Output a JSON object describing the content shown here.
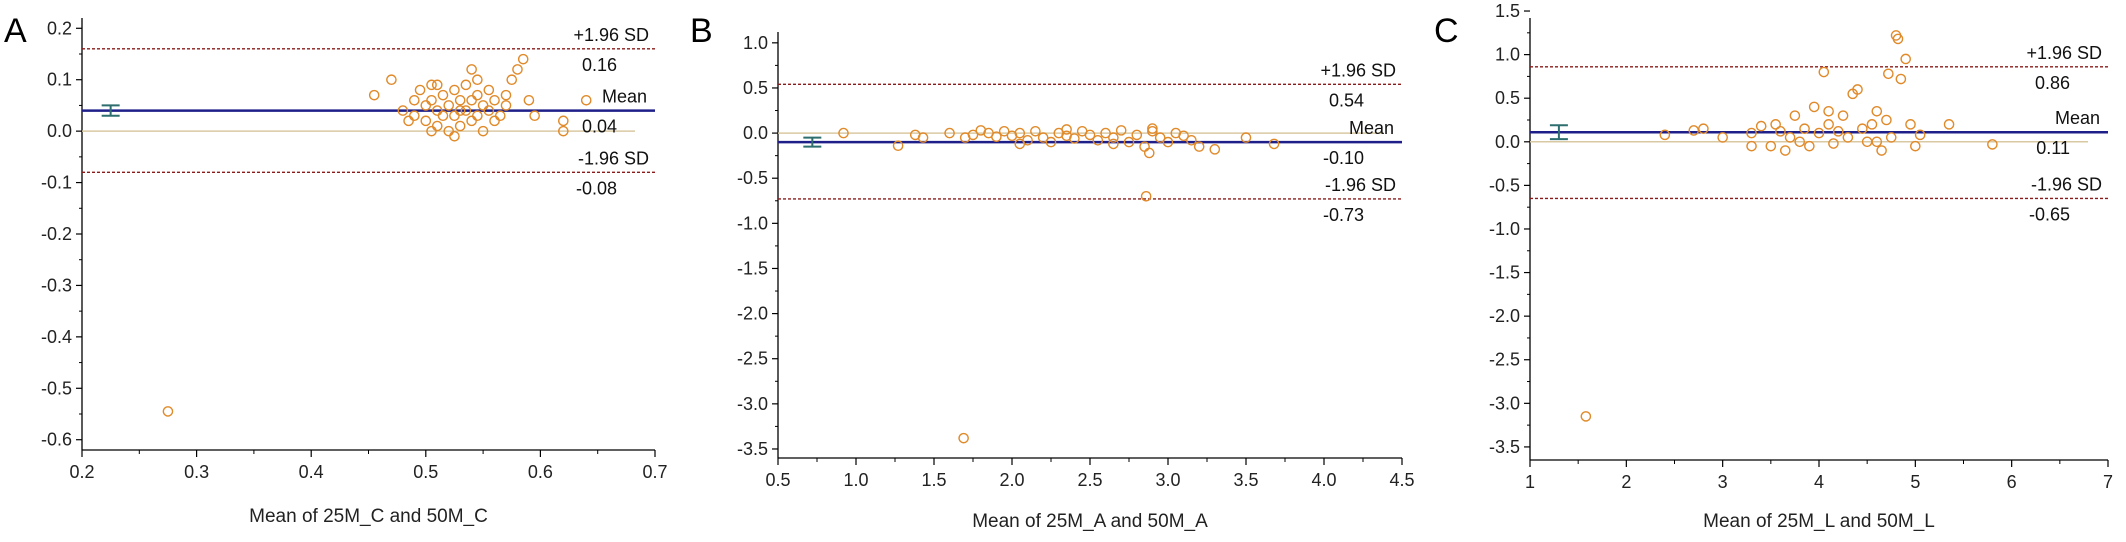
{
  "colors": {
    "axis": "#000000",
    "mean_line": "#1f1f8a",
    "limit_line": "#8b1a1a",
    "zero_line": "#d9c9a3",
    "point": "#e08a2a",
    "ci_bar": "#2e6e6e"
  },
  "chart_data": [
    {
      "type": "scatter",
      "panel_label": "A",
      "xlabel": "Mean of 25M_C and 50M_C",
      "ylabel": "",
      "xlim": [
        0.2,
        0.7
      ],
      "ylim": [
        -0.62,
        0.22
      ],
      "xticks": [
        "0.2",
        "0.3",
        "0.4",
        "0.5",
        "0.6",
        "0.7"
      ],
      "yticks": [
        "0.2",
        "0.1",
        "0.0",
        "-0.1",
        "-0.2",
        "-0.3",
        "-0.4",
        "-0.5",
        "-0.6"
      ],
      "mean": 0.04,
      "upper_loa": 0.16,
      "lower_loa": -0.08,
      "labels": {
        "upper": "+1.96 SD",
        "upper_value": "0.16",
        "mean": "Mean",
        "mean_value": "0.04",
        "lower": "-1.96 SD",
        "lower_value": "-0.08"
      },
      "mean_ci": {
        "x": 0.225,
        "low": 0.03,
        "high": 0.05
      },
      "points": [
        [
          0.455,
          0.07
        ],
        [
          0.47,
          0.1
        ],
        [
          0.48,
          0.04
        ],
        [
          0.485,
          0.02
        ],
        [
          0.49,
          0.06
        ],
        [
          0.49,
          0.03
        ],
        [
          0.495,
          0.08
        ],
        [
          0.5,
          0.05
        ],
        [
          0.5,
          0.02
        ],
        [
          0.505,
          0.09
        ],
        [
          0.505,
          0.06
        ],
        [
          0.51,
          0.04
        ],
        [
          0.51,
          0.01
        ],
        [
          0.515,
          0.07
        ],
        [
          0.515,
          0.03
        ],
        [
          0.52,
          0.05
        ],
        [
          0.52,
          0.0
        ],
        [
          0.525,
          0.08
        ],
        [
          0.525,
          0.03
        ],
        [
          0.53,
          0.06
        ],
        [
          0.53,
          0.01
        ],
        [
          0.535,
          0.09
        ],
        [
          0.535,
          0.04
        ],
        [
          0.54,
          0.12
        ],
        [
          0.54,
          0.06
        ],
        [
          0.54,
          0.02
        ],
        [
          0.545,
          0.07
        ],
        [
          0.545,
          0.03
        ],
        [
          0.55,
          0.05
        ],
        [
          0.55,
          0.0
        ],
        [
          0.555,
          0.08
        ],
        [
          0.555,
          0.04
        ],
        [
          0.56,
          0.06
        ],
        [
          0.56,
          0.02
        ],
        [
          0.565,
          0.03
        ],
        [
          0.57,
          0.07
        ],
        [
          0.57,
          0.05
        ],
        [
          0.575,
          0.1
        ],
        [
          0.58,
          0.12
        ],
        [
          0.585,
          0.14
        ],
        [
          0.59,
          0.06
        ],
        [
          0.595,
          0.03
        ],
        [
          0.62,
          0.02
        ],
        [
          0.62,
          0.0
        ],
        [
          0.64,
          0.06
        ],
        [
          0.525,
          -0.01
        ],
        [
          0.505,
          0.0
        ],
        [
          0.53,
          0.04
        ],
        [
          0.51,
          0.09
        ],
        [
          0.545,
          0.1
        ],
        [
          0.275,
          -0.545
        ]
      ]
    },
    {
      "type": "scatter",
      "panel_label": "B",
      "xlabel": "Mean of 25M_A and 50M_A",
      "ylabel": "",
      "xlim": [
        0.5,
        4.5
      ],
      "ylim": [
        -3.6,
        1.12
      ],
      "xticks": [
        "0.5",
        "1.0",
        "1.5",
        "2.0",
        "2.5",
        "3.0",
        "3.5",
        "4.0",
        "4.5"
      ],
      "yticks": [
        "1.0",
        "0.5",
        "0.0",
        "-0.5",
        "-1.0",
        "-1.5",
        "-2.0",
        "-2.5",
        "-3.0",
        "-3.5"
      ],
      "mean": -0.1,
      "upper_loa": 0.54,
      "lower_loa": -0.73,
      "labels": {
        "upper": "+1.96 SD",
        "upper_value": "0.54",
        "mean": "Mean",
        "mean_value": "-0.10",
        "lower": "-1.96 SD",
        "lower_value": "-0.73"
      },
      "mean_ci": {
        "x": 0.72,
        "low": -0.15,
        "high": -0.05
      },
      "points": [
        [
          0.92,
          0.0
        ],
        [
          1.27,
          -0.14
        ],
        [
          1.38,
          -0.02
        ],
        [
          1.43,
          -0.05
        ],
        [
          1.6,
          0.0
        ],
        [
          1.7,
          -0.05
        ],
        [
          1.75,
          -0.02
        ],
        [
          1.8,
          0.03
        ],
        [
          1.85,
          0.0
        ],
        [
          1.9,
          -0.04
        ],
        [
          1.95,
          0.02
        ],
        [
          2.0,
          -0.03
        ],
        [
          2.05,
          0.0
        ],
        [
          2.1,
          -0.08
        ],
        [
          2.15,
          0.02
        ],
        [
          2.2,
          -0.05
        ],
        [
          2.25,
          -0.1
        ],
        [
          2.3,
          0.0
        ],
        [
          2.35,
          -0.03
        ],
        [
          2.4,
          -0.06
        ],
        [
          2.45,
          0.02
        ],
        [
          2.5,
          -0.02
        ],
        [
          2.55,
          -0.08
        ],
        [
          2.6,
          0.0
        ],
        [
          2.65,
          -0.05
        ],
        [
          2.7,
          0.03
        ],
        [
          2.75,
          -0.1
        ],
        [
          2.8,
          -0.02
        ],
        [
          2.85,
          -0.15
        ],
        [
          2.9,
          0.02
        ],
        [
          2.95,
          -0.05
        ],
        [
          3.0,
          -0.1
        ],
        [
          3.05,
          0.0
        ],
        [
          3.1,
          -0.03
        ],
        [
          3.15,
          -0.08
        ],
        [
          3.2,
          -0.15
        ],
        [
          3.3,
          -0.18
        ],
        [
          3.5,
          -0.05
        ],
        [
          3.68,
          -0.12
        ],
        [
          2.05,
          -0.12
        ],
        [
          2.35,
          0.04
        ],
        [
          2.65,
          -0.12
        ],
        [
          2.88,
          -0.22
        ],
        [
          2.9,
          0.05
        ],
        [
          2.86,
          -0.7
        ],
        [
          1.69,
          -3.38
        ]
      ]
    },
    {
      "type": "scatter",
      "panel_label": "C",
      "xlabel": "Mean of 25M_L and 50M_L",
      "ylabel": "",
      "xlim": [
        1,
        7
      ],
      "ylim": [
        -3.65,
        1.42
      ],
      "xticks": [
        "1",
        "2",
        "3",
        "4",
        "5",
        "6",
        "7"
      ],
      "yticks": [
        "1.5",
        "1.0",
        "0.5",
        "0.0",
        "-0.5",
        "-1.0",
        "-1.5",
        "-2.0",
        "-2.5",
        "-3.0",
        "-3.5"
      ],
      "mean": 0.11,
      "upper_loa": 0.86,
      "lower_loa": -0.65,
      "labels": {
        "upper": "+1.96 SD",
        "upper_value": "0.86",
        "mean": "Mean",
        "mean_value": "0.11",
        "lower": "-1.96 SD",
        "lower_value": "-0.65"
      },
      "mean_ci": {
        "x": 1.3,
        "low": 0.03,
        "high": 0.19
      },
      "points": [
        [
          2.4,
          0.08
        ],
        [
          2.7,
          0.13
        ],
        [
          2.8,
          0.15
        ],
        [
          3.0,
          0.05
        ],
        [
          3.3,
          0.1
        ],
        [
          3.4,
          0.18
        ],
        [
          3.5,
          -0.05
        ],
        [
          3.55,
          0.2
        ],
        [
          3.6,
          0.12
        ],
        [
          3.65,
          -0.1
        ],
        [
          3.7,
          0.05
        ],
        [
          3.75,
          0.3
        ],
        [
          3.8,
          0.0
        ],
        [
          3.85,
          0.15
        ],
        [
          3.9,
          -0.05
        ],
        [
          3.95,
          0.4
        ],
        [
          4.0,
          0.1
        ],
        [
          4.05,
          0.8
        ],
        [
          4.1,
          0.2
        ],
        [
          4.15,
          -0.02
        ],
        [
          4.2,
          0.12
        ],
        [
          4.25,
          0.3
        ],
        [
          4.3,
          0.05
        ],
        [
          4.35,
          0.55
        ],
        [
          4.4,
          0.6
        ],
        [
          4.45,
          0.15
        ],
        [
          4.5,
          0.0
        ],
        [
          4.55,
          0.2
        ],
        [
          4.6,
          0.35
        ],
        [
          4.65,
          -0.1
        ],
        [
          4.7,
          0.25
        ],
        [
          4.72,
          0.78
        ],
        [
          4.75,
          0.05
        ],
        [
          4.8,
          1.22
        ],
        [
          4.82,
          1.18
        ],
        [
          4.85,
          0.72
        ],
        [
          4.9,
          0.95
        ],
        [
          4.95,
          0.2
        ],
        [
          5.0,
          -0.05
        ],
        [
          5.05,
          0.08
        ],
        [
          5.35,
          0.2
        ],
        [
          5.8,
          -0.03
        ],
        [
          4.6,
          0.0
        ],
        [
          4.1,
          0.35
        ],
        [
          3.3,
          -0.05
        ],
        [
          1.58,
          -3.15
        ]
      ]
    }
  ]
}
